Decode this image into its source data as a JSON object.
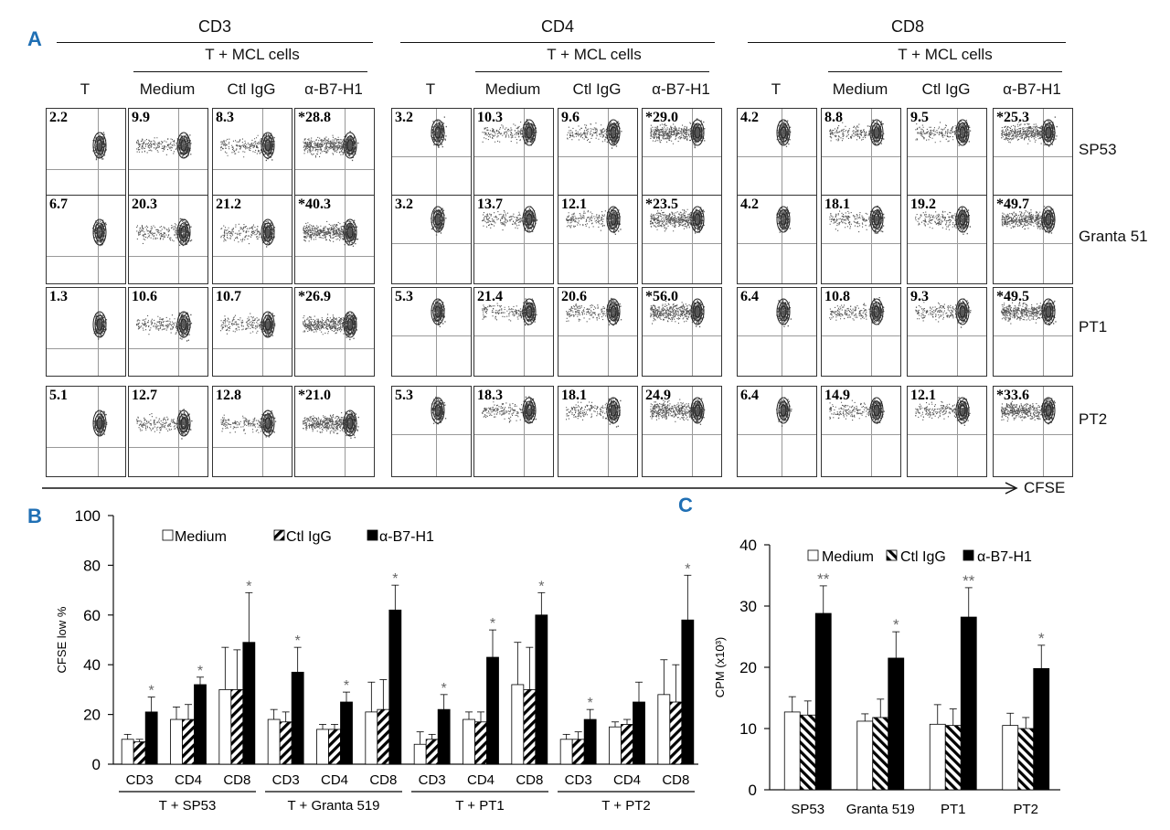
{
  "panel_a": {
    "letter": "A",
    "groups": [
      {
        "title": "CD3",
        "subtitle": "T + MCL cells"
      },
      {
        "title": "CD4",
        "subtitle": "T + MCL cells"
      },
      {
        "title": "CD8",
        "subtitle": "T + MCL cells"
      }
    ],
    "columns": [
      "T",
      "Medium",
      "Ctl IgG",
      "α-B7-H1"
    ],
    "rows": [
      "SP53",
      "Granta 51",
      "PT1",
      "PT2"
    ],
    "values": [
      [
        [
          "2.2",
          "9.9",
          "8.3",
          "*28.8"
        ],
        [
          "3.2",
          "10.3",
          "9.6",
          "*29.0"
        ],
        [
          "4.2",
          "8.8",
          "9.5",
          "*25.3"
        ]
      ],
      [
        [
          "6.7",
          "20.3",
          "21.2",
          "*40.3"
        ],
        [
          "3.2",
          "13.7",
          "12.1",
          "*23.5"
        ],
        [
          "4.2",
          "18.1",
          "19.2",
          "*49.7"
        ]
      ],
      [
        [
          "1.3",
          "10.6",
          "10.7",
          "*26.9"
        ],
        [
          "5.3",
          "21.4",
          "20.6",
          "*56.0"
        ],
        [
          "6.4",
          "10.8",
          "9.3",
          "*49.5"
        ]
      ],
      [
        [
          "5.1",
          "12.7",
          "12.8",
          "*21.0"
        ],
        [
          "5.3",
          "18.3",
          "18.1",
          "24.9"
        ],
        [
          "6.4",
          "14.9",
          "12.1",
          "*33.6"
        ]
      ]
    ],
    "x_axis_label": "CFSE"
  },
  "chart_data": [
    {
      "id": "B",
      "type": "bar",
      "letter": "B",
      "ylabel": "CFSE low %",
      "ylim": [
        0,
        100
      ],
      "yticks": [
        0,
        20,
        40,
        60,
        80,
        100
      ],
      "legend": [
        "Medium",
        "Ctl IgG",
        "α-B7-H1"
      ],
      "legend_placement": "top",
      "groups": [
        "T + SP53",
        "T + Granta 519",
        "T + PT1",
        "T + PT2"
      ],
      "subcategories": [
        "CD3",
        "CD4",
        "CD8"
      ],
      "series": [
        {
          "name": "Medium",
          "values": [
            10,
            18,
            30,
            18,
            14,
            21,
            8,
            18,
            32,
            10,
            15,
            28
          ],
          "errors": [
            2,
            5,
            17,
            4,
            2,
            12,
            5,
            3,
            17,
            2,
            2,
            14
          ]
        },
        {
          "name": "Ctl IgG",
          "values": [
            9,
            18,
            30,
            17,
            14,
            22,
            10,
            17,
            30,
            10,
            16,
            25
          ],
          "errors": [
            1,
            6,
            16,
            4,
            2,
            12,
            2,
            4,
            17,
            3,
            2,
            15
          ]
        },
        {
          "name": "α-B7-H1",
          "values": [
            21,
            32,
            49,
            37,
            25,
            62,
            22,
            43,
            60,
            18,
            25,
            58
          ],
          "errors": [
            6,
            3,
            20,
            10,
            4,
            10,
            6,
            11,
            9,
            4,
            8,
            18
          ]
        }
      ],
      "significance": [
        "*",
        "*",
        "*",
        "*",
        "*",
        "*",
        "*",
        "*",
        "*",
        "*",
        "",
        "*"
      ]
    },
    {
      "id": "C",
      "type": "bar",
      "letter": "C",
      "ylabel": "CPM (x10³)",
      "ylim": [
        0,
        40
      ],
      "yticks": [
        0,
        10,
        20,
        30,
        40
      ],
      "legend": [
        "Medium",
        "Ctl IgG",
        "α-B7-H1"
      ],
      "legend_placement": "top",
      "categories": [
        "SP53",
        "Granta 519",
        "PT1",
        "PT2"
      ],
      "series": [
        {
          "name": "Medium",
          "values": [
            12.7,
            11.2,
            10.7,
            10.5
          ],
          "errors": [
            2.5,
            1.2,
            3.2,
            2.0
          ]
        },
        {
          "name": "Ctl IgG",
          "values": [
            12.2,
            11.8,
            10.5,
            10.0
          ],
          "errors": [
            2.3,
            3.0,
            2.7,
            1.8
          ]
        },
        {
          "name": "α-B7-H1",
          "values": [
            28.8,
            21.5,
            28.2,
            19.8
          ],
          "errors": [
            4.5,
            4.3,
            4.8,
            3.8
          ]
        }
      ],
      "significance": [
        "**",
        "*",
        "**",
        "*"
      ]
    }
  ]
}
